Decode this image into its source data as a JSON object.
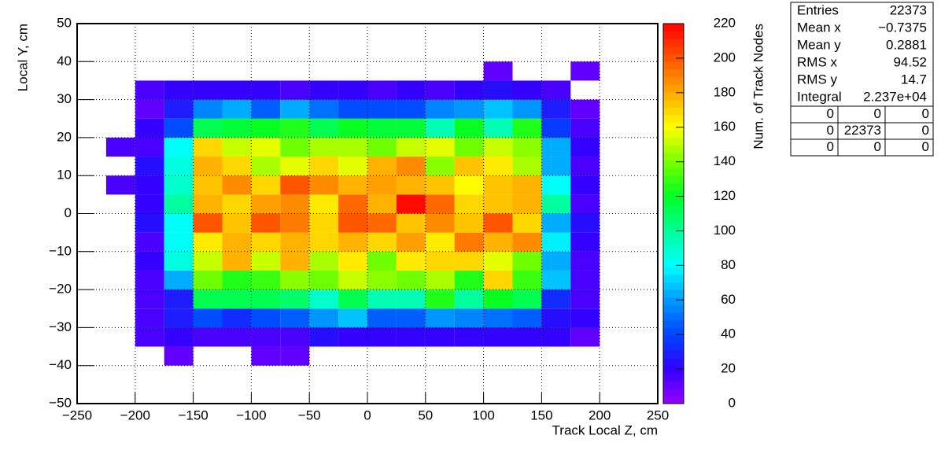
{
  "chart_data": {
    "type": "heatmap",
    "x_label": "Track Local Z, cm",
    "y_label": "Local Y, cm",
    "z_label": "Num. of Track Nodes",
    "xlim": [
      -250,
      250
    ],
    "ylim": [
      -50,
      50
    ],
    "zlim": [
      0,
      220
    ],
    "grid": true,
    "xticks": [
      {
        "value": -250,
        "label": "−250"
      },
      {
        "value": -200,
        "label": "−200"
      },
      {
        "value": -150,
        "label": "−150"
      },
      {
        "value": -100,
        "label": "−100"
      },
      {
        "value": -50,
        "label": "−50"
      },
      0,
      50,
      100,
      150,
      200,
      250
    ],
    "yticks": [
      {
        "value": -50,
        "label": "−50"
      },
      {
        "value": -40,
        "label": "−40"
      },
      {
        "value": -30,
        "label": "−30"
      },
      {
        "value": -20,
        "label": "−20"
      },
      {
        "value": -10,
        "label": "−10"
      },
      0,
      10,
      20,
      30,
      40,
      50
    ],
    "zticks": [
      0,
      20,
      40,
      60,
      80,
      100,
      120,
      140,
      160,
      180,
      200,
      220
    ],
    "palette": [
      "#9900ff",
      "#3300ff",
      "#0044ff",
      "#0099ff",
      "#00ffff",
      "#00ff99",
      "#00ff22",
      "#77ff00",
      "#ffff00",
      "#ffaa00",
      "#ff5500",
      "#ff0000"
    ],
    "x_bins": [
      -225,
      -200,
      -175,
      -150,
      -125,
      -100,
      -75,
      -50,
      -25,
      0,
      25,
      50,
      75,
      100,
      125,
      150,
      175,
      200
    ],
    "y_bins": [
      -40,
      -35,
      -30,
      -25,
      -20,
      -15,
      -10,
      -5,
      0,
      5,
      10,
      15,
      20,
      25,
      30,
      35,
      40
    ],
    "z": [
      [
        null,
        null,
        10,
        null,
        null,
        10,
        10,
        null,
        null,
        null,
        null,
        null,
        null,
        null,
        null,
        null,
        null
      ],
      [
        null,
        14,
        18,
        16,
        16,
        16,
        16,
        25,
        18,
        18,
        20,
        18,
        20,
        20,
        18,
        18,
        10
      ],
      [
        null,
        14,
        30,
        40,
        35,
        40,
        45,
        60,
        70,
        48,
        48,
        60,
        55,
        50,
        48,
        25,
        18
      ],
      [
        null,
        15,
        30,
        112,
        112,
        112,
        108,
        90,
        110,
        95,
        95,
        125,
        100,
        120,
        110,
        35,
        15
      ],
      [
        null,
        15,
        65,
        140,
        125,
        130,
        145,
        140,
        150,
        145,
        140,
        148,
        125,
        170,
        130,
        70,
        15
      ],
      [
        null,
        20,
        85,
        150,
        180,
        150,
        180,
        148,
        165,
        140,
        165,
        170,
        170,
        155,
        140,
        65,
        15
      ],
      [
        null,
        16,
        80,
        165,
        180,
        170,
        178,
        170,
        178,
        168,
        182,
        165,
        190,
        178,
        185,
        75,
        20
      ],
      [
        null,
        22,
        80,
        200,
        175,
        198,
        192,
        170,
        200,
        195,
        175,
        185,
        175,
        198,
        170,
        62,
        22
      ],
      [
        null,
        20,
        100,
        180,
        170,
        182,
        185,
        165,
        195,
        178,
        220,
        195,
        170,
        175,
        180,
        100,
        15
      ],
      [
        15,
        20,
        90,
        175,
        185,
        168,
        200,
        185,
        178,
        182,
        178,
        172,
        162,
        172,
        180,
        80,
        20
      ],
      [
        null,
        25,
        85,
        180,
        168,
        148,
        155,
        168,
        155,
        180,
        185,
        145,
        172,
        165,
        148,
        65,
        15
      ],
      [
        14,
        15,
        80,
        168,
        150,
        158,
        140,
        148,
        148,
        140,
        150,
        155,
        140,
        150,
        145,
        65,
        18
      ],
      [
        null,
        18,
        40,
        112,
        115,
        120,
        125,
        110,
        120,
        118,
        118,
        95,
        120,
        95,
        125,
        38,
        15
      ],
      [
        null,
        12,
        30,
        55,
        65,
        45,
        62,
        52,
        40,
        40,
        42,
        55,
        60,
        70,
        58,
        28,
        12
      ],
      [
        null,
        15,
        18,
        18,
        20,
        18,
        16,
        18,
        18,
        16,
        18,
        16,
        18,
        25,
        18,
        14,
        null
      ],
      [
        null,
        null,
        null,
        null,
        null,
        null,
        null,
        null,
        null,
        null,
        null,
        null,
        null,
        12,
        null,
        null,
        12
      ]
    ]
  },
  "stats": {
    "rows": [
      [
        "Entries",
        "22373"
      ],
      [
        "Mean x",
        "−0.7375"
      ],
      [
        "Mean y",
        "0.2881"
      ],
      [
        "RMS x",
        "94.52"
      ],
      [
        "RMS y",
        "14.7"
      ],
      [
        "Integral",
        "2.237e+04"
      ]
    ],
    "grid": [
      [
        "0",
        "0",
        "0"
      ],
      [
        "0",
        "22373",
        "0"
      ],
      [
        "0",
        "0",
        "0"
      ]
    ]
  }
}
